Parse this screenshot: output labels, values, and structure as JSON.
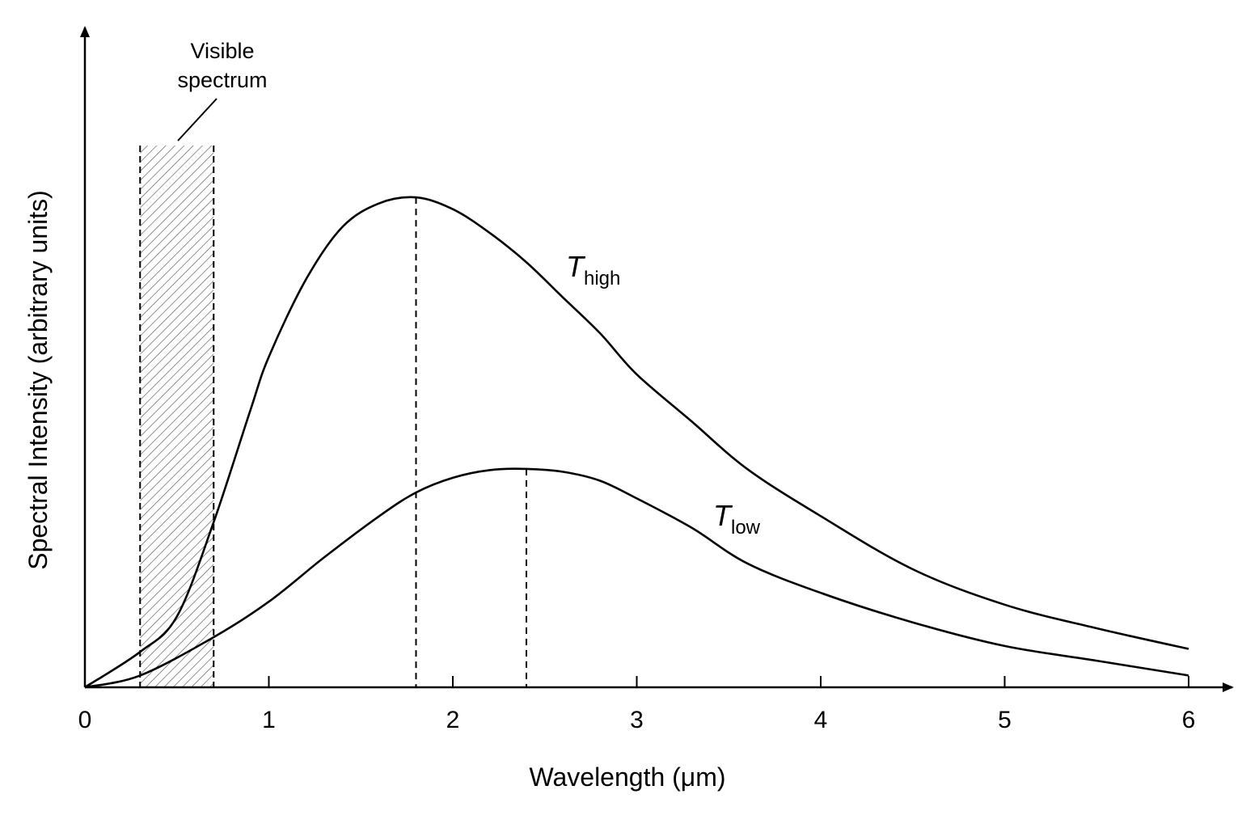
{
  "chart_data": {
    "type": "line",
    "xlabel": "Wavelength (μm)",
    "ylabel": "Spectral Intensity (arbitrary units)",
    "xlim": [
      0,
      6.2
    ],
    "ylim": [
      0,
      1.0
    ],
    "xticks": [
      0,
      1,
      2,
      3,
      4,
      5,
      6
    ],
    "x_tick_labels": [
      "0",
      "1",
      "2",
      "3",
      "4",
      "5",
      "6"
    ],
    "y_ticks_shown": false,
    "grid": false,
    "legend": "none",
    "colors": {
      "line": "#000000",
      "band": "#666666"
    },
    "visible_band": {
      "label_line1": "Visible",
      "label_line2": "spectrum",
      "x_start": 0.3,
      "x_end": 0.7,
      "fill": "diagonal hatch"
    },
    "series": [
      {
        "name": "T",
        "name_sub": "high",
        "peak_x": 1.8,
        "peak_y": 0.83,
        "peak_marker": "dashed vertical",
        "points": [
          [
            0.0,
            0.0
          ],
          [
            0.3,
            0.06
          ],
          [
            0.5,
            0.12
          ],
          [
            0.7,
            0.28
          ],
          [
            0.9,
            0.47
          ],
          [
            1.0,
            0.56
          ],
          [
            1.2,
            0.69
          ],
          [
            1.4,
            0.78
          ],
          [
            1.6,
            0.82
          ],
          [
            1.8,
            0.83
          ],
          [
            2.0,
            0.81
          ],
          [
            2.2,
            0.77
          ],
          [
            2.4,
            0.72
          ],
          [
            2.6,
            0.66
          ],
          [
            2.8,
            0.6
          ],
          [
            3.0,
            0.53
          ],
          [
            3.3,
            0.45
          ],
          [
            3.6,
            0.37
          ],
          [
            4.0,
            0.29
          ],
          [
            4.5,
            0.2
          ],
          [
            5.0,
            0.14
          ],
          [
            5.5,
            0.1
          ],
          [
            6.0,
            0.065
          ]
        ]
      },
      {
        "name": "T",
        "name_sub": "low",
        "peak_x": 2.4,
        "peak_y": 0.37,
        "peak_marker": "dashed vertical",
        "points": [
          [
            0.0,
            0.0
          ],
          [
            0.3,
            0.02
          ],
          [
            0.7,
            0.085
          ],
          [
            1.0,
            0.145
          ],
          [
            1.3,
            0.22
          ],
          [
            1.6,
            0.29
          ],
          [
            1.8,
            0.33
          ],
          [
            2.0,
            0.355
          ],
          [
            2.2,
            0.368
          ],
          [
            2.4,
            0.37
          ],
          [
            2.6,
            0.365
          ],
          [
            2.8,
            0.35
          ],
          [
            3.0,
            0.32
          ],
          [
            3.3,
            0.27
          ],
          [
            3.6,
            0.21
          ],
          [
            4.0,
            0.16
          ],
          [
            4.5,
            0.11
          ],
          [
            5.0,
            0.07
          ],
          [
            5.5,
            0.045
          ],
          [
            6.0,
            0.02
          ]
        ]
      }
    ]
  }
}
